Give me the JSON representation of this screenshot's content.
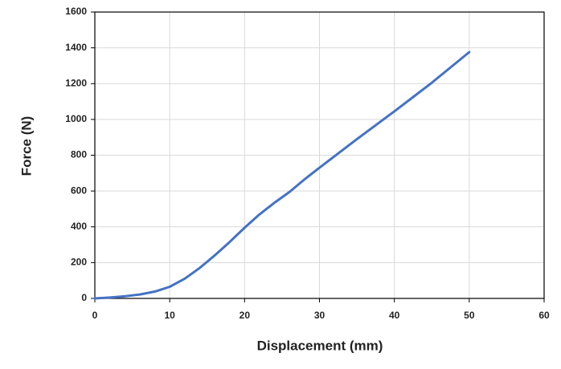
{
  "chart_data": {
    "type": "line",
    "x_label": "Displacement (mm)",
    "y_label": "Force (N)",
    "x": [
      0,
      2,
      4,
      6,
      8,
      10,
      12,
      14,
      16,
      18,
      20,
      22,
      24,
      26,
      28,
      30,
      35,
      40,
      45,
      50
    ],
    "series": [
      {
        "name": "Force",
        "color": "#4472c4",
        "values": [
          0,
          5,
          12,
          22,
          38,
          65,
          110,
          170,
          240,
          315,
          395,
          470,
          535,
          595,
          665,
          730,
          890,
          1045,
          1205,
          1376
        ]
      }
    ],
    "xlim": [
      0,
      60
    ],
    "xticks": [
      0,
      10,
      20,
      30,
      40,
      50,
      60
    ],
    "ylim": [
      0,
      1600
    ],
    "yticks": [
      0,
      200,
      400,
      600,
      800,
      1000,
      1200,
      1400,
      1600
    ],
    "grid": true
  }
}
